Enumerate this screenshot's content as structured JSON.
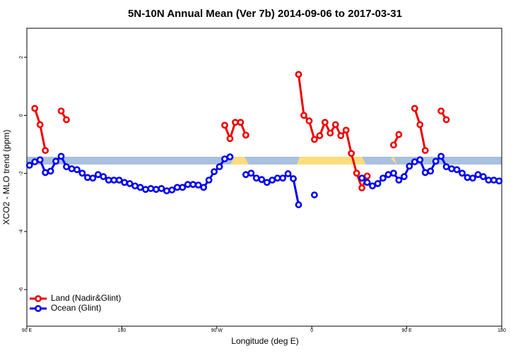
{
  "chart_data": {
    "type": "line",
    "title": "5N-10N Annual Mean (Ver 7b)   2014-09-06 to 2017-03-31",
    "x_label": "Longitude (deg E)",
    "y_label": "XCO2 - MLO trend (ppm)",
    "x": [
      92.5,
      97.5,
      102.5,
      107.5,
      112.5,
      117.5,
      122.5,
      127.5,
      132.5,
      137.5,
      142.5,
      147.5,
      152.5,
      157.5,
      162.5,
      167.5,
      172.5,
      177.5,
      182.5,
      187.5,
      192.5,
      197.5,
      202.5,
      207.5,
      212.5,
      217.5,
      222.5,
      227.5,
      232.5,
      237.5,
      242.5,
      247.5,
      252.5,
      257.5,
      262.5,
      267.5,
      272.5,
      277.5,
      282.5,
      287.5,
      292.5,
      297.5,
      302.5,
      307.5,
      312.5,
      317.5,
      322.5,
      327.5,
      332.5,
      337.5,
      342.5,
      347.5,
      352.5,
      357.5,
      362.5,
      367.5,
      372.5,
      377.5,
      382.5,
      387.5,
      392.5,
      397.5,
      402.5,
      407.5,
      412.5,
      417.5,
      422.5,
      427.5,
      432.5,
      437.5,
      442.5,
      447.5,
      452.5,
      457.5,
      462.5,
      467.5,
      472.5,
      477.5,
      482.5,
      487.5,
      492.5,
      497.5,
      502.5,
      507.5,
      512.5,
      517.5,
      522.5,
      527.5,
      532.5,
      537.5
    ],
    "series": [
      {
        "name": "Land (Nadir&Glint)",
        "color": "#ee0000",
        "values": [
          null,
          0.24,
          -0.32,
          -1.21,
          null,
          null,
          0.15,
          -0.15,
          null,
          null,
          null,
          null,
          null,
          null,
          null,
          null,
          null,
          null,
          null,
          null,
          null,
          null,
          null,
          null,
          null,
          null,
          null,
          null,
          null,
          null,
          null,
          null,
          null,
          null,
          null,
          null,
          null,
          -0.34,
          -0.8,
          -0.24,
          -0.24,
          -0.68,
          null,
          null,
          null,
          null,
          null,
          null,
          null,
          null,
          null,
          1.41,
          0.0,
          -0.19,
          -0.83,
          -0.7,
          -0.24,
          -0.61,
          -0.32,
          -0.7,
          -0.51,
          -1.31,
          -1.99,
          -2.5,
          -2.09,
          null,
          null,
          null,
          null,
          -1.02,
          -0.66,
          null,
          null,
          0.24,
          -0.32,
          -1.21,
          null,
          null,
          0.15,
          -0.15,
          null,
          null,
          null,
          null,
          null,
          null,
          null,
          null,
          null,
          null
        ]
      },
      {
        "name": "Ocean (Glint)",
        "color": "#0000ee",
        "values": [
          -1.72,
          -1.6,
          -1.53,
          -1.97,
          -1.92,
          -1.58,
          -1.41,
          -1.77,
          -1.84,
          -1.87,
          -1.99,
          -2.14,
          -2.16,
          -2.04,
          -2.11,
          -2.23,
          -2.23,
          -2.23,
          -2.31,
          -2.35,
          -2.43,
          -2.48,
          -2.55,
          -2.52,
          -2.55,
          -2.52,
          -2.6,
          -2.57,
          -2.48,
          -2.48,
          -2.38,
          -2.38,
          -2.4,
          -2.48,
          -2.23,
          -1.94,
          -1.77,
          -1.5,
          -1.43,
          null,
          null,
          -2.04,
          -1.99,
          -2.16,
          -2.21,
          -2.31,
          -2.23,
          -2.16,
          -2.16,
          -2.01,
          -2.18,
          -3.08,
          null,
          null,
          -2.74,
          null,
          null,
          null,
          null,
          null,
          null,
          null,
          null,
          -2.16,
          -2.31,
          -2.43,
          -2.35,
          -2.16,
          -2.04,
          -1.99,
          -2.23,
          -2.11,
          -1.75,
          -1.6,
          -1.53,
          -1.97,
          -1.92,
          -1.58,
          -1.41,
          -1.77,
          -1.84,
          -1.87,
          -1.99,
          -2.14,
          -2.16,
          -2.04,
          -2.11,
          -2.23,
          -2.23,
          -2.26
        ]
      }
    ],
    "xlim": [
      90,
      540
    ],
    "xticks": [
      {
        "value": 90,
        "label": "90 E"
      },
      180,
      {
        "value": 270,
        "label": "90 W"
      },
      {
        "value": 360,
        "label": "0"
      },
      {
        "value": 450,
        "label": "90 E"
      },
      {
        "value": 540,
        "label": "180"
      }
    ],
    "ylim": [
      -7.26,
      3.0
    ],
    "yticks": [
      2,
      0,
      -2,
      -4,
      -6
    ],
    "legend": "bottom-left"
  }
}
